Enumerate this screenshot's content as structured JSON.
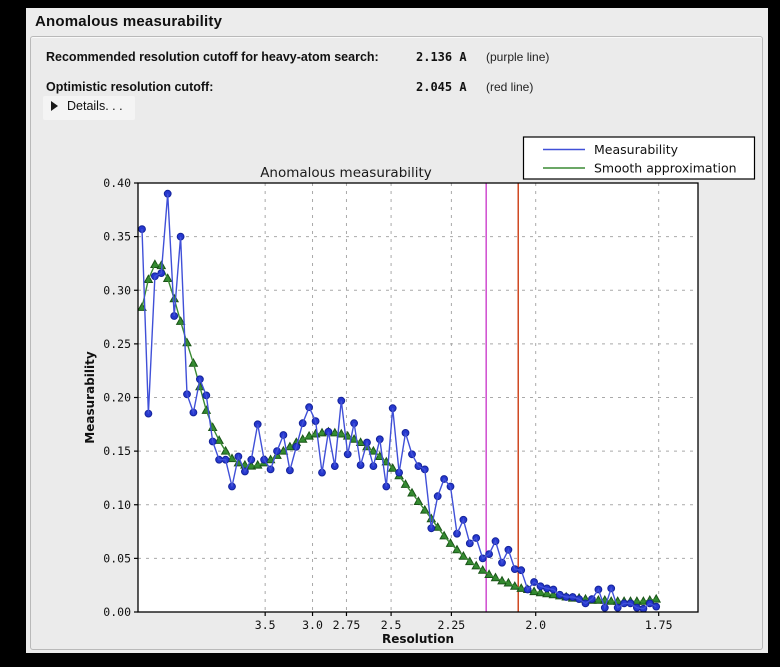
{
  "window": {
    "title": "Anomalous measurability"
  },
  "header": {
    "rows": [
      {
        "label": "Recommended resolution cutoff for heavy-atom search:",
        "value": "2.136 A",
        "note": "(purple line)"
      },
      {
        "label": "Optimistic resolution cutoff:",
        "value": "2.045 A",
        "note": "(red line)"
      }
    ],
    "details_label": "Details. . ."
  },
  "chart_data": {
    "type": "line",
    "title": "Anomalous measurability",
    "xlabel": "Resolution",
    "ylabel": "Measurability",
    "grid": true,
    "x_axis": {
      "scale": "inverse_d_squared",
      "tick_values": [
        3.5,
        3.0,
        2.75,
        2.5,
        2.25,
        2.0,
        1.75
      ],
      "tick_labels": [
        "3.5",
        "3.0",
        "2.75",
        "2.5",
        "2.25",
        "2.0",
        "1.75"
      ],
      "s2_min": 0.0025,
      "s2_max": 0.351
    },
    "y_axis": {
      "min": 0.0,
      "max": 0.4,
      "ticks": [
        0.0,
        0.05,
        0.1,
        0.15,
        0.2,
        0.25,
        0.3,
        0.35,
        0.4
      ],
      "tick_labels": [
        "0.00",
        "0.05",
        "0.10",
        "0.15",
        "0.20",
        "0.25",
        "0.30",
        "0.35",
        "0.40"
      ]
    },
    "s2_start": 0.005,
    "s2_step": 0.004,
    "series": [
      {
        "name": "Measurability",
        "marker": "circle",
        "line_color": "#4050d8",
        "marker_fill": "#2638cf",
        "marker_edge": "#14239a",
        "values": [
          0.357,
          0.185,
          0.313,
          0.316,
          0.39,
          0.276,
          0.35,
          0.203,
          0.186,
          0.217,
          0.202,
          0.159,
          0.142,
          0.142,
          0.117,
          0.145,
          0.131,
          0.142,
          0.175,
          0.142,
          0.133,
          0.15,
          0.165,
          0.132,
          0.154,
          0.176,
          0.191,
          0.178,
          0.13,
          0.168,
          0.136,
          0.197,
          0.147,
          0.176,
          0.137,
          0.158,
          0.136,
          0.161,
          0.117,
          0.19,
          0.13,
          0.167,
          0.147,
          0.136,
          0.133,
          0.078,
          0.108,
          0.124,
          0.117,
          0.073,
          0.086,
          0.064,
          0.069,
          0.05,
          0.054,
          0.066,
          0.046,
          0.058,
          0.04,
          0.039,
          0.021,
          0.028,
          0.024,
          0.022,
          0.021,
          0.016,
          0.014,
          0.014,
          0.012,
          0.008,
          0.012,
          0.021,
          0.004,
          0.022,
          0.004,
          0.008,
          0.008,
          0.004,
          0.003,
          0.008,
          0.005
        ]
      },
      {
        "name": "Smooth approximation",
        "marker": "triangle",
        "line_color": "#3a8a33",
        "marker_fill": "#2f8b2f",
        "marker_edge": "#1b5418",
        "values": [
          0.284,
          0.31,
          0.324,
          0.323,
          0.311,
          0.292,
          0.271,
          0.251,
          0.232,
          0.21,
          0.188,
          0.172,
          0.16,
          0.15,
          0.143,
          0.139,
          0.137,
          0.136,
          0.137,
          0.139,
          0.142,
          0.146,
          0.15,
          0.154,
          0.158,
          0.161,
          0.164,
          0.166,
          0.167,
          0.168,
          0.167,
          0.166,
          0.164,
          0.161,
          0.158,
          0.154,
          0.15,
          0.145,
          0.14,
          0.134,
          0.127,
          0.119,
          0.111,
          0.103,
          0.095,
          0.087,
          0.079,
          0.071,
          0.064,
          0.058,
          0.052,
          0.047,
          0.043,
          0.039,
          0.035,
          0.032,
          0.029,
          0.027,
          0.024,
          0.022,
          0.021,
          0.019,
          0.018,
          0.017,
          0.016,
          0.015,
          0.014,
          0.013,
          0.013,
          0.012,
          0.011,
          0.011,
          0.011,
          0.01,
          0.01,
          0.01,
          0.01,
          0.01,
          0.01,
          0.011,
          0.012
        ]
      }
    ],
    "vlines": [
      {
        "name": "purple line",
        "resolution": 2.136,
        "color": "#cc3fcc"
      },
      {
        "name": "red line",
        "resolution": 2.045,
        "color": "#cc3a10"
      }
    ],
    "legend": {
      "position": "upper right",
      "entries": [
        "Measurability",
        "Smooth approximation"
      ]
    }
  },
  "colors": {
    "page_bg": "#000000",
    "panel_bg": "#ececec",
    "plot_bg": "#ffffff",
    "grid": "#a9a9a9",
    "axis": "#000000",
    "text": "#111111"
  }
}
